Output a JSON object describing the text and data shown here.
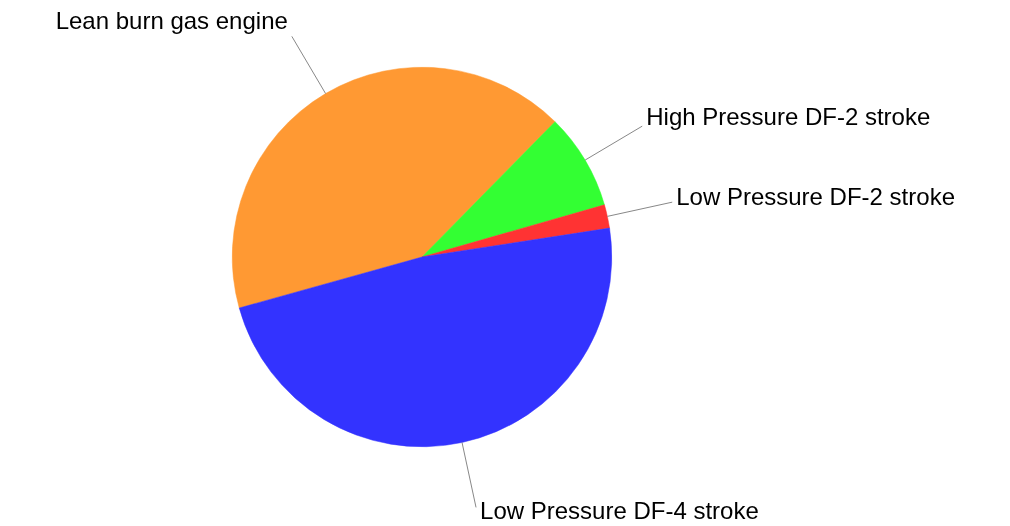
{
  "chart_data": {
    "type": "pie",
    "categories": [
      "Lean burn gas engine",
      "High Pressure DF-2 stroke",
      "Low Pressure DF-2 stroke",
      "Low Pressure DF-4 stroke"
    ],
    "values": [
      41.7,
      8.2,
      2.0,
      48.1
    ],
    "colors": [
      "#ff9933",
      "#33ff33",
      "#ff3333",
      "#3333ff"
    ],
    "legend": false
  }
}
